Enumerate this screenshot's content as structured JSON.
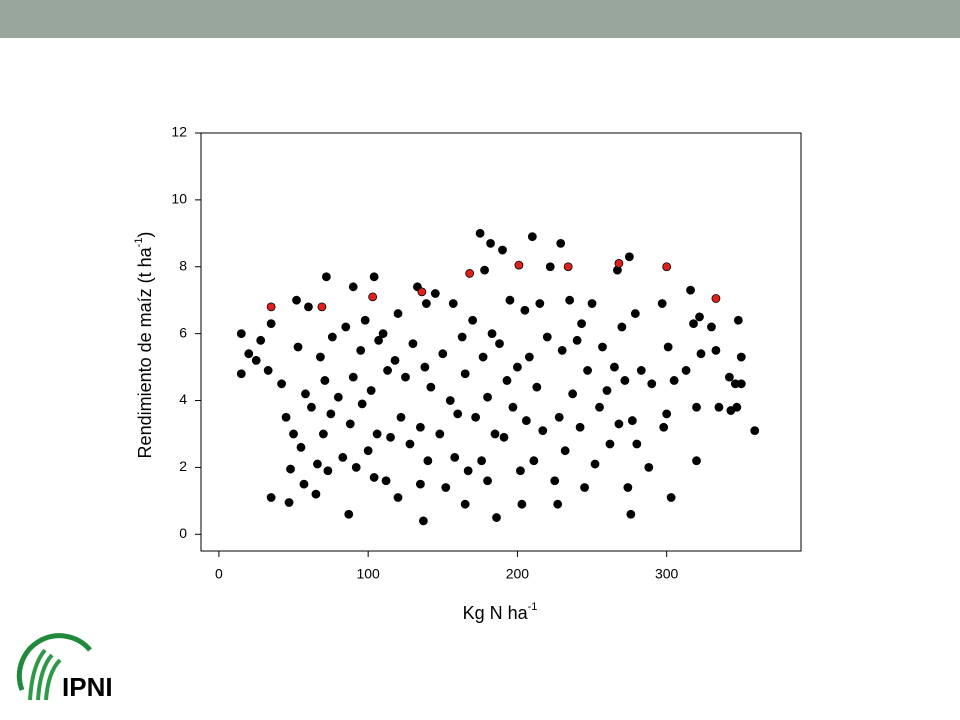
{
  "chart_data": {
    "type": "scatter",
    "x_label": {
      "text": "Kg N ha",
      "sup": "-1"
    },
    "y_label": {
      "text": "Rendimiento de maíz (t ha",
      "sup": "-1",
      "end": ")"
    },
    "xlim": [
      -12,
      390
    ],
    "ylim": [
      -0.5,
      12
    ],
    "xticks": [
      0,
      100,
      200,
      300
    ],
    "yticks": [
      0,
      2,
      4,
      6,
      8,
      10,
      12
    ],
    "series": [
      {
        "color": "#000000",
        "x": [
          15,
          15,
          20,
          25,
          28,
          33,
          35,
          35,
          42,
          45,
          47,
          48,
          50,
          52,
          53,
          55,
          57,
          58,
          60,
          62,
          65,
          66,
          68,
          70,
          71,
          72,
          73,
          75,
          76,
          80,
          83,
          85,
          87,
          88,
          90,
          90,
          92,
          95,
          96,
          98,
          100,
          102,
          104,
          104,
          106,
          107,
          110,
          112,
          113,
          115,
          118,
          120,
          120,
          122,
          125,
          128,
          130,
          133,
          135,
          135,
          137,
          138,
          139,
          140,
          142,
          145,
          148,
          150,
          152,
          155,
          157,
          158,
          160,
          163,
          165,
          165,
          167,
          170,
          172,
          175,
          176,
          177,
          178,
          180,
          180,
          182,
          183,
          185,
          186,
          188,
          190,
          191,
          193,
          195,
          197,
          200,
          202,
          203,
          205,
          206,
          208,
          210,
          211,
          213,
          215,
          217,
          220,
          222,
          225,
          227,
          228,
          229,
          230,
          232,
          235,
          237,
          240,
          242,
          243,
          245,
          247,
          250,
          252,
          255,
          257,
          260,
          262,
          265,
          267,
          268,
          270,
          272,
          274,
          275,
          276,
          277,
          279,
          280,
          283,
          288,
          290,
          297,
          298,
          300,
          301,
          303,
          305,
          313,
          316,
          318,
          320,
          320,
          322,
          323,
          330,
          333,
          335,
          342,
          343,
          346,
          347,
          348,
          350,
          350,
          359
        ],
        "y": [
          6.0,
          4.8,
          5.4,
          5.2,
          5.8,
          4.9,
          1.1,
          6.3,
          4.5,
          3.5,
          0.95,
          1.95,
          3.0,
          7.0,
          5.6,
          2.6,
          1.5,
          4.2,
          6.8,
          3.8,
          1.2,
          2.1,
          5.3,
          3.0,
          4.6,
          7.7,
          1.9,
          3.6,
          5.9,
          4.1,
          2.3,
          6.2,
          0.6,
          3.3,
          7.4,
          4.7,
          2.0,
          5.5,
          3.9,
          6.4,
          2.5,
          4.3,
          1.7,
          7.7,
          3.0,
          5.8,
          6.0,
          1.6,
          4.9,
          2.9,
          5.2,
          1.1,
          6.6,
          3.5,
          4.7,
          2.7,
          5.7,
          7.4,
          1.5,
          3.2,
          0.4,
          5.0,
          6.9,
          2.2,
          4.4,
          7.2,
          3.0,
          5.4,
          1.4,
          4.0,
          6.9,
          2.3,
          3.6,
          5.9,
          0.9,
          4.8,
          1.9,
          6.4,
          3.5,
          9.0,
          2.2,
          5.3,
          7.9,
          4.1,
          1.6,
          8.7,
          6.0,
          3.0,
          0.5,
          5.7,
          8.5,
          2.9,
          4.6,
          7.0,
          3.8,
          5.0,
          1.9,
          0.9,
          6.7,
          3.4,
          5.3,
          8.9,
          2.2,
          4.4,
          6.9,
          3.1,
          5.9,
          8.0,
          1.6,
          0.9,
          3.5,
          8.7,
          5.5,
          2.5,
          7.0,
          4.2,
          5.8,
          3.2,
          6.3,
          1.4,
          4.9,
          6.9,
          2.1,
          3.8,
          5.6,
          4.3,
          2.7,
          5.0,
          7.9,
          3.3,
          6.2,
          4.6,
          1.4,
          8.3,
          0.6,
          3.4,
          6.6,
          2.7,
          4.9,
          2.0,
          4.5,
          6.9,
          3.2,
          3.6,
          5.6,
          1.1,
          4.6,
          4.9,
          7.3,
          6.3,
          2.2,
          3.8,
          6.5,
          5.4,
          6.2,
          5.5,
          3.8,
          4.7,
          3.7,
          4.5,
          3.8,
          6.4,
          5.3,
          4.5,
          3.1
        ]
      },
      {
        "color": "#e0201b",
        "x": [
          35,
          69,
          103,
          136,
          168,
          201,
          234,
          268,
          300,
          333
        ],
        "y": [
          6.8,
          6.8,
          7.1,
          7.25,
          7.8,
          8.05,
          8.0,
          8.1,
          8.0,
          7.05
        ]
      }
    ]
  },
  "logo": {
    "text": "IPNI"
  }
}
